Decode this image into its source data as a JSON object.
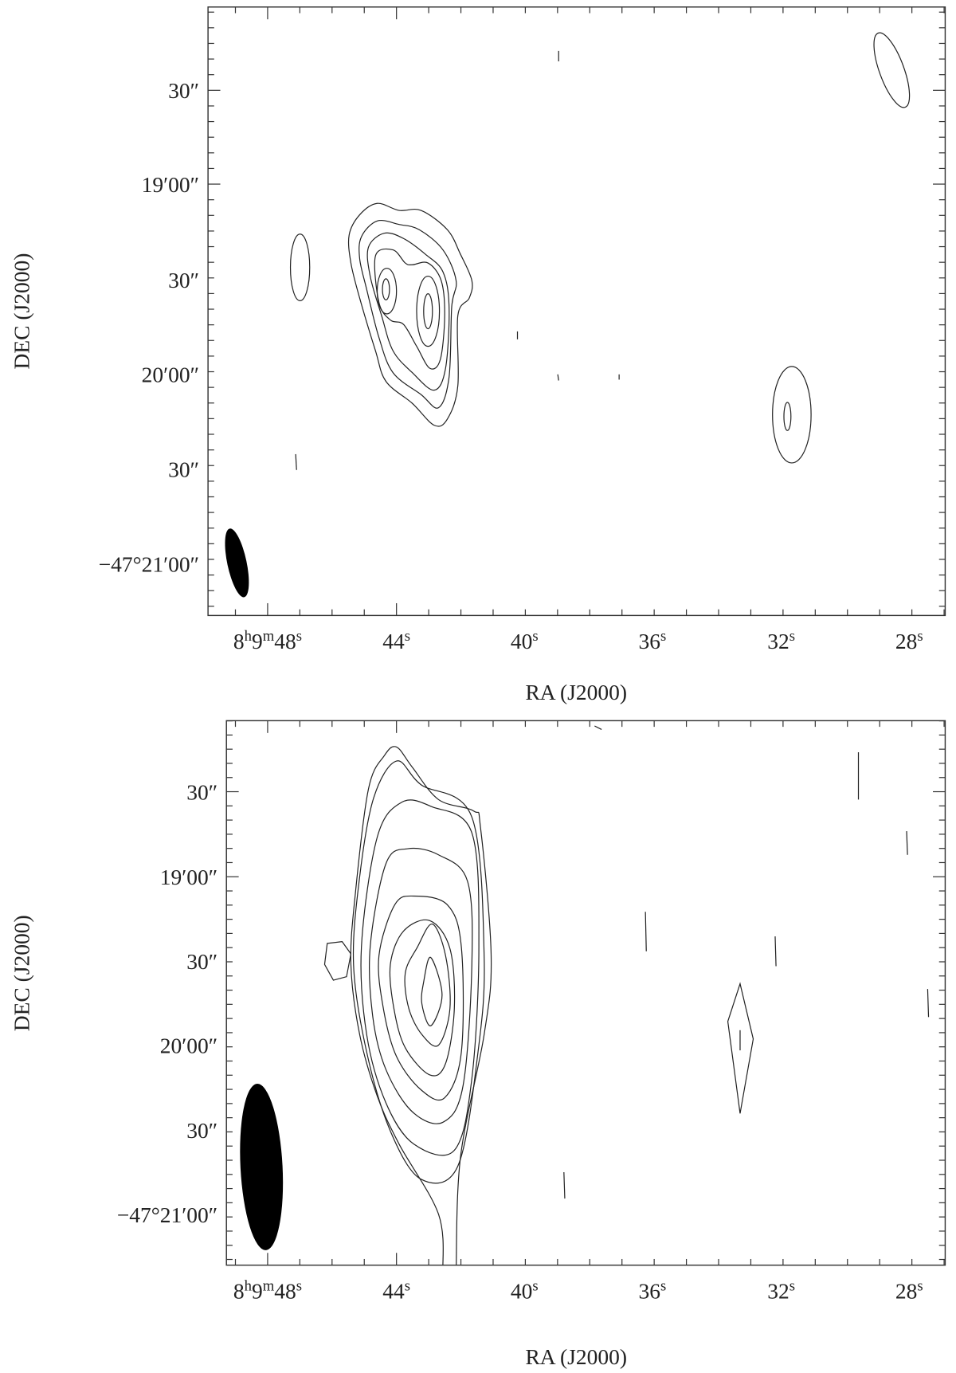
{
  "panels": [
    {
      "ra_ticks": [
        [
          "8",
          "h",
          "9",
          "m",
          "48",
          "s"
        ],
        [
          "44",
          "s"
        ],
        [
          "40",
          "s"
        ],
        [
          "36",
          "s"
        ],
        [
          "32",
          "s"
        ],
        [
          "28",
          "s"
        ]
      ],
      "dec_ticks": [
        "30″",
        "19′00″",
        "30″",
        "20′00″",
        "30″",
        "−47°21′00″"
      ],
      "x_label": "RA (J2000)",
      "y_label": "DEC (J2000)"
    },
    {
      "ra_ticks": [
        [
          "8",
          "h",
          "9",
          "m",
          "48",
          "s"
        ],
        [
          "44",
          "s"
        ],
        [
          "40",
          "s"
        ],
        [
          "36",
          "s"
        ],
        [
          "32",
          "s"
        ],
        [
          "28",
          "s"
        ]
      ],
      "dec_ticks": [
        "30″",
        "19′00″",
        "30″",
        "20′00″",
        "30″",
        "−47°21′00″"
      ],
      "x_label": "RA (J2000)",
      "y_label": "DEC (J2000)"
    }
  ]
}
